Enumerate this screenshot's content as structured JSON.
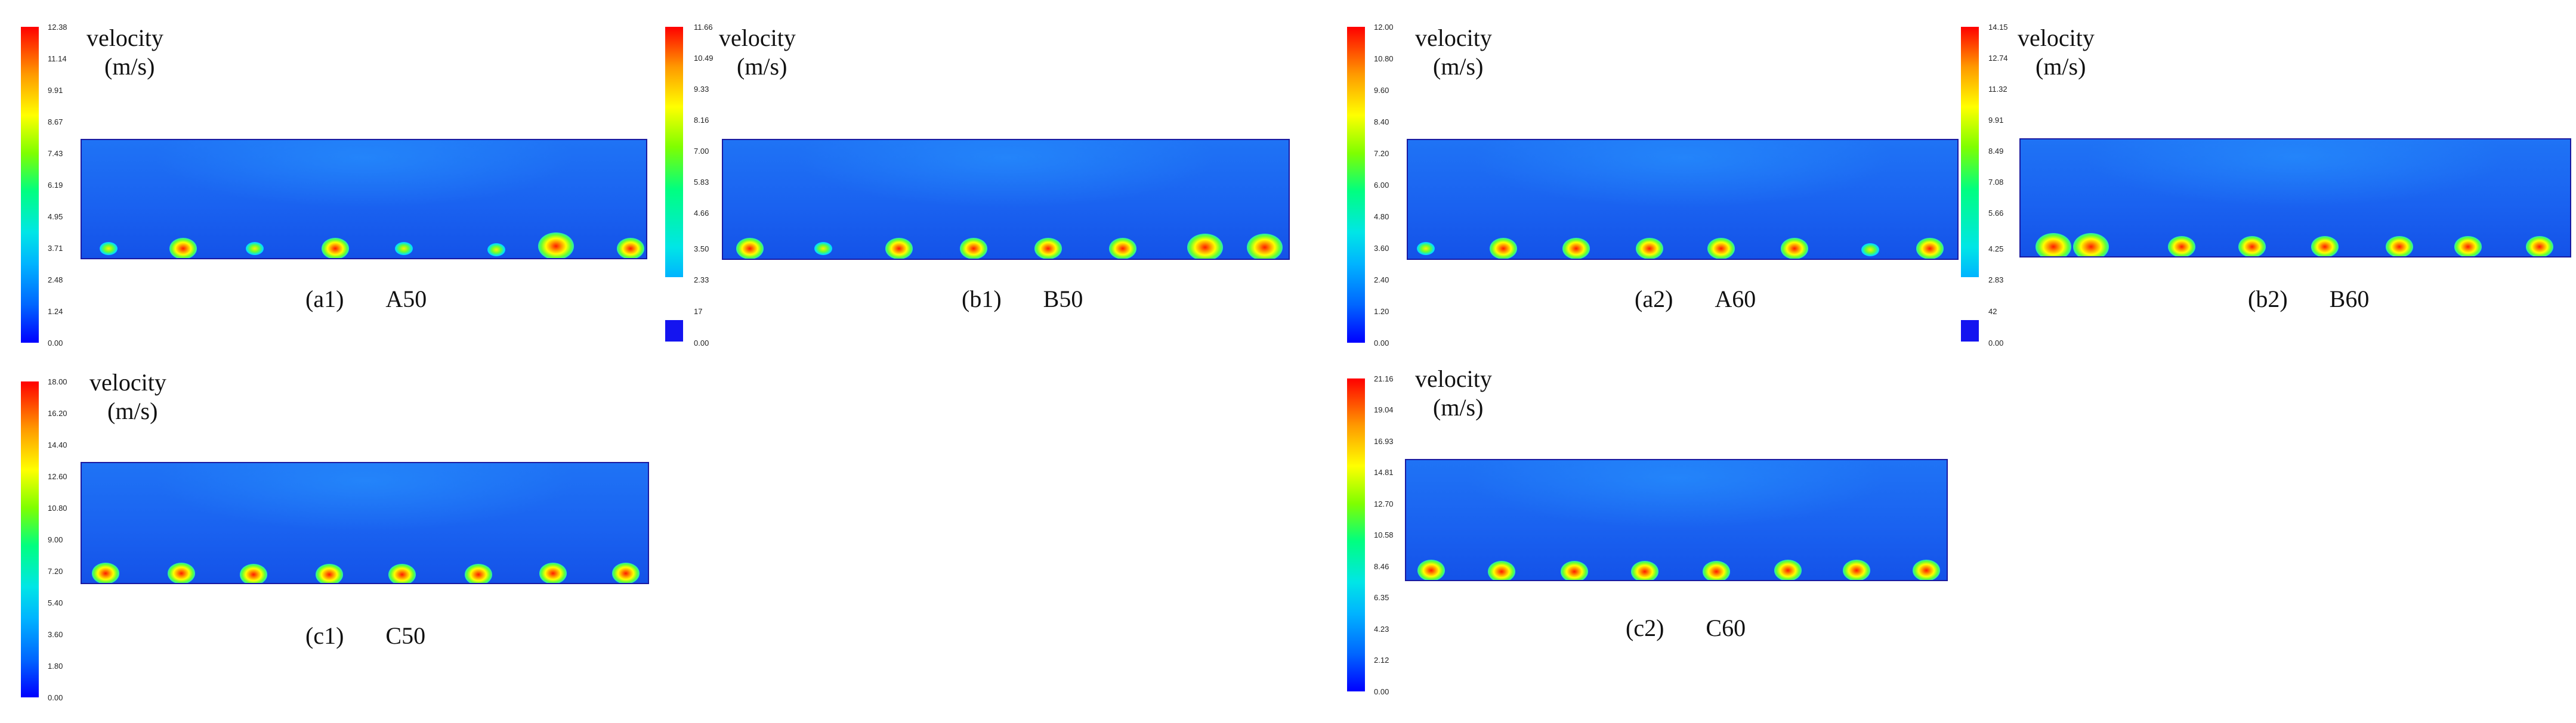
{
  "label_velocity": "velocity",
  "label_unit": "(m/s)",
  "panels": [
    {
      "id": "a1",
      "tag": "(a1)",
      "name": "A50",
      "ticks": [
        "12.38",
        "11.14",
        "9.91",
        "8.67",
        "7.43",
        "6.19",
        "4.95",
        "3.71",
        "2.48",
        "1.24",
        "0.00"
      ]
    },
    {
      "id": "b1",
      "tag": "(b1)",
      "name": "B50",
      "ticks": [
        "11.66",
        "10.49",
        "9.33",
        "8.16",
        "7.00",
        "5.83",
        "4.66",
        "3.50",
        "2.33"
      ],
      "extra_ticks": [
        "17",
        "0.00"
      ]
    },
    {
      "id": "a2",
      "tag": "(a2)",
      "name": "A60",
      "ticks": [
        "12.00",
        "10.80",
        "9.60",
        "8.40",
        "7.20",
        "6.00",
        "4.80",
        "3.60",
        "2.40",
        "1.20",
        "0.00"
      ]
    },
    {
      "id": "b2",
      "tag": "(b2)",
      "name": "B60",
      "ticks": [
        "14.15",
        "12.74",
        "11.32",
        "9.91",
        "8.49",
        "7.08",
        "5.66",
        "4.25",
        "2.83"
      ],
      "extra_ticks": [
        "42",
        "0.00"
      ]
    },
    {
      "id": "c1",
      "tag": "(c1)",
      "name": "C50",
      "ticks": [
        "18.00",
        "16.20",
        "14.40",
        "12.60",
        "10.80",
        "9.00",
        "7.20",
        "5.40",
        "3.60",
        "1.80",
        "0.00"
      ]
    },
    {
      "id": "c2",
      "tag": "(c2)",
      "name": "C60",
      "ticks": [
        "21.16",
        "19.04",
        "16.93",
        "14.81",
        "12.70",
        "10.58",
        "8.46",
        "6.35",
        "4.23",
        "2.12",
        "0.00"
      ]
    }
  ],
  "colors": {
    "low": "#0000ff",
    "high": "#ff0000",
    "field": "#1a62f0"
  }
}
